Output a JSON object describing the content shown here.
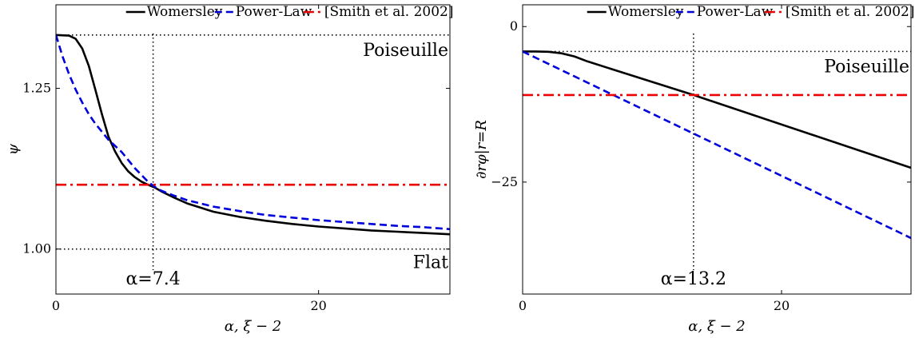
{
  "chart_data": [
    {
      "type": "line",
      "xlabel": "α, ξ − 2",
      "ylabel": "ψ",
      "xlim": [
        0,
        30
      ],
      "ylim": [
        0.93,
        1.38
      ],
      "xticks": [
        0,
        20
      ],
      "xtick_labels": [
        "0",
        "20"
      ],
      "yticks": [
        1.0,
        1.25
      ],
      "ytick_labels": [
        "1.00",
        "1.25"
      ],
      "legend_position": "top",
      "series": [
        {
          "name": "Womersley",
          "color": "#000000",
          "style": "solid",
          "x": [
            0,
            1,
            1.5,
            2,
            2.5,
            3,
            3.5,
            4,
            4.5,
            5,
            5.5,
            6,
            6.5,
            7,
            7.5,
            8,
            9,
            10,
            12,
            14,
            16,
            18,
            20,
            22,
            24,
            26,
            28,
            30
          ],
          "y": [
            1.333,
            1.332,
            1.327,
            1.312,
            1.285,
            1.248,
            1.21,
            1.175,
            1.152,
            1.134,
            1.121,
            1.112,
            1.105,
            1.1,
            1.096,
            1.09,
            1.08,
            1.071,
            1.058,
            1.05,
            1.044,
            1.039,
            1.035,
            1.032,
            1.029,
            1.027,
            1.025,
            1.023
          ]
        },
        {
          "name": "Power-Law",
          "color": "#0000dd",
          "style": "dashed",
          "x": [
            0,
            0.5,
            1,
            1.5,
            2,
            2.5,
            3,
            4,
            5,
            6,
            7,
            7.5,
            8,
            9,
            10,
            12,
            14,
            16,
            18,
            20,
            22,
            24,
            26,
            28,
            30
          ],
          "y": [
            1.333,
            1.3,
            1.272,
            1.248,
            1.228,
            1.21,
            1.195,
            1.17,
            1.151,
            1.126,
            1.105,
            1.097,
            1.091,
            1.083,
            1.076,
            1.066,
            1.059,
            1.053,
            1.049,
            1.045,
            1.042,
            1.039,
            1.036,
            1.034,
            1.031
          ]
        },
        {
          "name": "[Smith et al. 2002]",
          "color": "#ee0000",
          "style": "dashdot",
          "x": [
            0,
            30
          ],
          "y": [
            1.1,
            1.1
          ]
        }
      ],
      "reference_lines": [
        {
          "label": "Poiseuille",
          "y": 1.333
        },
        {
          "label": "Flat",
          "y": 1.0
        }
      ],
      "vline": {
        "x": 7.4,
        "label": "α=7.4"
      }
    },
    {
      "type": "line",
      "xlabel": "α, ξ − 2",
      "ylabel": "∂rφ|r=R",
      "xlim": [
        0,
        30
      ],
      "ylim": [
        -43,
        3.5
      ],
      "xticks": [
        0,
        20
      ],
      "xtick_labels": [
        "0",
        "20"
      ],
      "yticks": [
        0,
        -25
      ],
      "ytick_labels": [
        "0",
        "−25"
      ],
      "legend_position": "top",
      "series": [
        {
          "name": "Womersley",
          "color": "#000000",
          "style": "solid",
          "x": [
            0,
            1,
            2,
            3,
            4,
            5,
            13.2,
            30
          ],
          "y": [
            -4.0,
            -4.0,
            -4.05,
            -4.3,
            -4.8,
            -5.6,
            -11.0,
            -22.7
          ]
        },
        {
          "name": "Power-Law",
          "color": "#0000dd",
          "style": "dashed",
          "x": [
            0,
            30
          ],
          "y": [
            -4.0,
            -34.0
          ]
        },
        {
          "name": "[Smith et al. 2002]",
          "color": "#ee0000",
          "style": "dashdot",
          "x": [
            0,
            30
          ],
          "y": [
            -11.0,
            -11.0
          ]
        }
      ],
      "reference_lines": [
        {
          "label": "Poiseuille",
          "y": -4.0
        }
      ],
      "vline": {
        "x": 13.2,
        "label": "α=13.2"
      }
    }
  ]
}
